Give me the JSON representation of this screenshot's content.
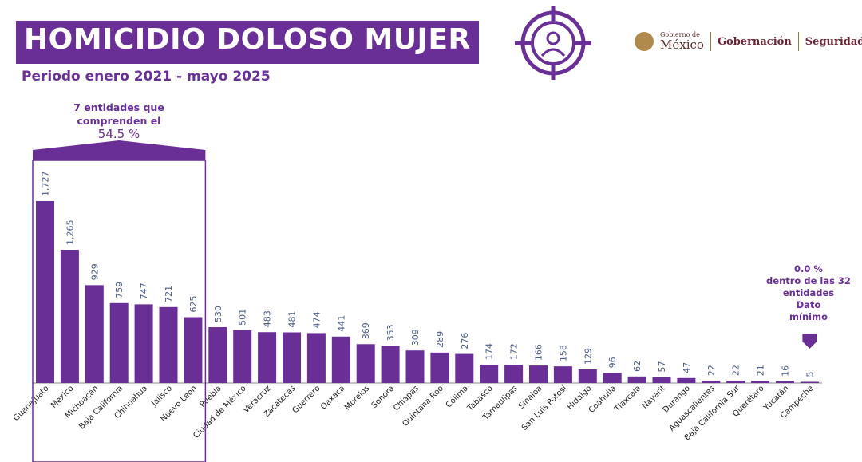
{
  "header": {
    "title": "HOMICIDIO DOLOSO MUJER",
    "subtitle": "Periodo enero 2021 - mayo 2025"
  },
  "logos": {
    "gobierno_small": "Gobierno de",
    "gobierno_big": "México",
    "gobernacion": "Gobernación",
    "seguridad": "Seguridad"
  },
  "colors": {
    "accent": "#6a2e97",
    "bar": "#6a2e97",
    "label": "#4a5a8a"
  },
  "annotations": {
    "top_group_line1": "7 entidades que",
    "top_group_line2": "comprenden el",
    "top_group_pct": "54.5 %",
    "min_line1": "0.0 %",
    "min_line2": "dentro de las 32",
    "min_line3": "entidades",
    "min_line4": "Dato",
    "min_line5": "mínimo"
  },
  "chart_data": {
    "type": "bar",
    "title": "HOMICIDIO DOLOSO MUJER",
    "categories": [
      "Guanajuato",
      "México",
      "Michoacán",
      "Baja California",
      "Chihuahua",
      "Jalisco",
      "Nuevo León",
      "Puebla",
      "Ciudad de México",
      "Veracruz",
      "Zacatecas",
      "Guerrero",
      "Oaxaca",
      "Morelos",
      "Sonora",
      "Chiapas",
      "Quintana Roo",
      "Colima",
      "Tabasco",
      "Tamaulipas",
      "Sinaloa",
      "San Luis Potosí",
      "Hidalgo",
      "Coahuila",
      "Tlaxcala",
      "Nayarit",
      "Durango",
      "Aguascalientes",
      "Baja California Sur",
      "Querétaro",
      "Yucatán",
      "Campeche"
    ],
    "values": [
      1727,
      1265,
      929,
      759,
      747,
      721,
      625,
      530,
      501,
      483,
      481,
      474,
      441,
      369,
      353,
      309,
      289,
      276,
      174,
      172,
      166,
      158,
      129,
      96,
      62,
      57,
      47,
      22,
      22,
      21,
      16,
      5
    ],
    "value_labels": [
      "1,727",
      "1,265",
      "929",
      "759",
      "747",
      "721",
      "625",
      "530",
      "501",
      "483",
      "481",
      "474",
      "441",
      "369",
      "353",
      "309",
      "289",
      "276",
      "174",
      "172",
      "166",
      "158",
      "129",
      "96",
      "62",
      "57",
      "47",
      "22",
      "22",
      "21",
      "16",
      "5"
    ],
    "xlabel": "",
    "ylabel": "",
    "ylim": [
      0,
      1727
    ],
    "grid": false,
    "legend": "none"
  }
}
